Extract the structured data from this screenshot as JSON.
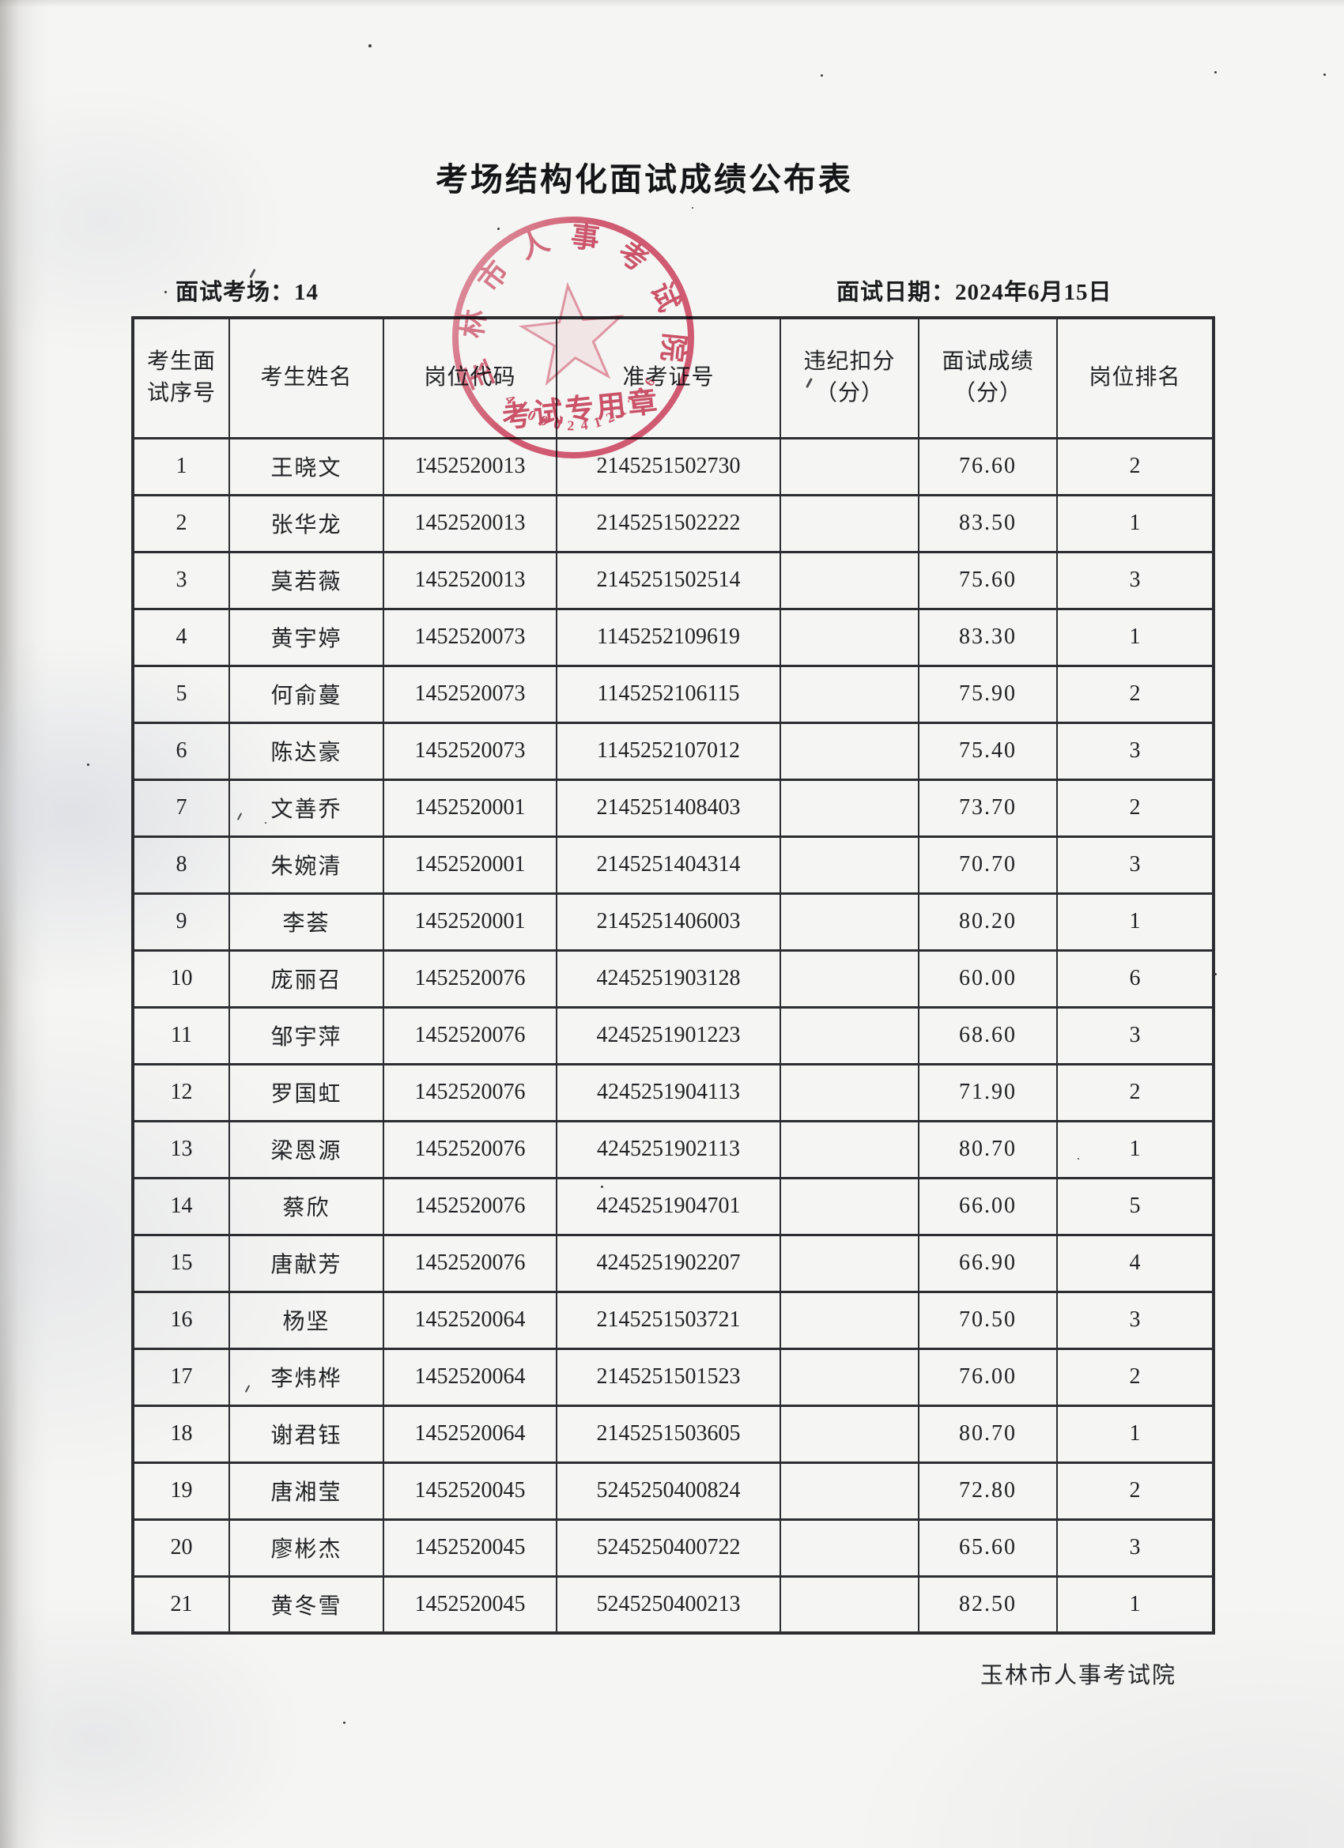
{
  "page": {
    "title": "考场结构化面试成绩公布表",
    "meta": {
      "room_label": "面试考场：",
      "room_value": "14",
      "date_label": "面试日期：",
      "date_value": "2024年6月15日"
    },
    "footer": "玉林市人事考试院"
  },
  "table": {
    "headers": [
      "考生面\n试序号",
      "考生姓名",
      "岗位代码",
      "准考证号",
      "违纪扣分\n（分）",
      "面试成绩\n（分）",
      "岗位排名"
    ],
    "columns": [
      "seq",
      "name",
      "post_code",
      "ticket_no",
      "deduction",
      "score",
      "rank"
    ],
    "rows": [
      {
        "seq": "1",
        "name": "王晓文",
        "post_code": "1452520013",
        "ticket_no": "2145251502730",
        "deduction": "",
        "score": "76.60",
        "rank": "2"
      },
      {
        "seq": "2",
        "name": "张华龙",
        "post_code": "1452520013",
        "ticket_no": "2145251502222",
        "deduction": "",
        "score": "83.50",
        "rank": "1"
      },
      {
        "seq": "3",
        "name": "莫若薇",
        "post_code": "1452520013",
        "ticket_no": "2145251502514",
        "deduction": "",
        "score": "75.60",
        "rank": "3"
      },
      {
        "seq": "4",
        "name": "黄宇婷",
        "post_code": "1452520073",
        "ticket_no": "1145252109619",
        "deduction": "",
        "score": "83.30",
        "rank": "1"
      },
      {
        "seq": "5",
        "name": "何俞蔓",
        "post_code": "1452520073",
        "ticket_no": "1145252106115",
        "deduction": "",
        "score": "75.90",
        "rank": "2"
      },
      {
        "seq": "6",
        "name": "陈达豪",
        "post_code": "1452520073",
        "ticket_no": "1145252107012",
        "deduction": "",
        "score": "75.40",
        "rank": "3"
      },
      {
        "seq": "7",
        "name": "文善乔",
        "post_code": "1452520001",
        "ticket_no": "2145251408403",
        "deduction": "",
        "score": "73.70",
        "rank": "2"
      },
      {
        "seq": "8",
        "name": "朱婉清",
        "post_code": "1452520001",
        "ticket_no": "2145251404314",
        "deduction": "",
        "score": "70.70",
        "rank": "3"
      },
      {
        "seq": "9",
        "name": "李荟",
        "post_code": "1452520001",
        "ticket_no": "2145251406003",
        "deduction": "",
        "score": "80.20",
        "rank": "1"
      },
      {
        "seq": "10",
        "name": "庞丽召",
        "post_code": "1452520076",
        "ticket_no": "4245251903128",
        "deduction": "",
        "score": "60.00",
        "rank": "6"
      },
      {
        "seq": "11",
        "name": "邹宇萍",
        "post_code": "1452520076",
        "ticket_no": "4245251901223",
        "deduction": "",
        "score": "68.60",
        "rank": "3"
      },
      {
        "seq": "12",
        "name": "罗国虹",
        "post_code": "1452520076",
        "ticket_no": "4245251904113",
        "deduction": "",
        "score": "71.90",
        "rank": "2"
      },
      {
        "seq": "13",
        "name": "梁恩源",
        "post_code": "1452520076",
        "ticket_no": "4245251902113",
        "deduction": "",
        "score": "80.70",
        "rank": "1"
      },
      {
        "seq": "14",
        "name": "蔡欣",
        "post_code": "1452520076",
        "ticket_no": "4245251904701",
        "deduction": "",
        "score": "66.00",
        "rank": "5"
      },
      {
        "seq": "15",
        "name": "唐献芳",
        "post_code": "1452520076",
        "ticket_no": "4245251902207",
        "deduction": "",
        "score": "66.90",
        "rank": "4"
      },
      {
        "seq": "16",
        "name": "杨坚",
        "post_code": "1452520064",
        "ticket_no": "2145251503721",
        "deduction": "",
        "score": "70.50",
        "rank": "3"
      },
      {
        "seq": "17",
        "name": "李炜桦",
        "post_code": "1452520064",
        "ticket_no": "2145251501523",
        "deduction": "",
        "score": "76.00",
        "rank": "2"
      },
      {
        "seq": "18",
        "name": "谢君钰",
        "post_code": "1452520064",
        "ticket_no": "2145251503605",
        "deduction": "",
        "score": "80.70",
        "rank": "1"
      },
      {
        "seq": "19",
        "name": "唐湘莹",
        "post_code": "1452520045",
        "ticket_no": "5245250400824",
        "deduction": "",
        "score": "72.80",
        "rank": "2"
      },
      {
        "seq": "20",
        "name": "廖彬杰",
        "post_code": "1452520045",
        "ticket_no": "5245250400722",
        "deduction": "",
        "score": "65.60",
        "rank": "3"
      },
      {
        "seq": "21",
        "name": "黄冬雪",
        "post_code": "1452520045",
        "ticket_no": "5245250400213",
        "deduction": "",
        "score": "82.50",
        "rank": "1"
      }
    ]
  },
  "stamp": {
    "org_text": "玉林市人事考试院",
    "center_text": "考试专用章",
    "serial": "4509024121236",
    "ink_color": "#d5506a"
  },
  "colors": {
    "paper": "#f5f5f3",
    "ink": "#1f2022",
    "table_border": "#2b2d30",
    "seal": "#d5506a"
  }
}
